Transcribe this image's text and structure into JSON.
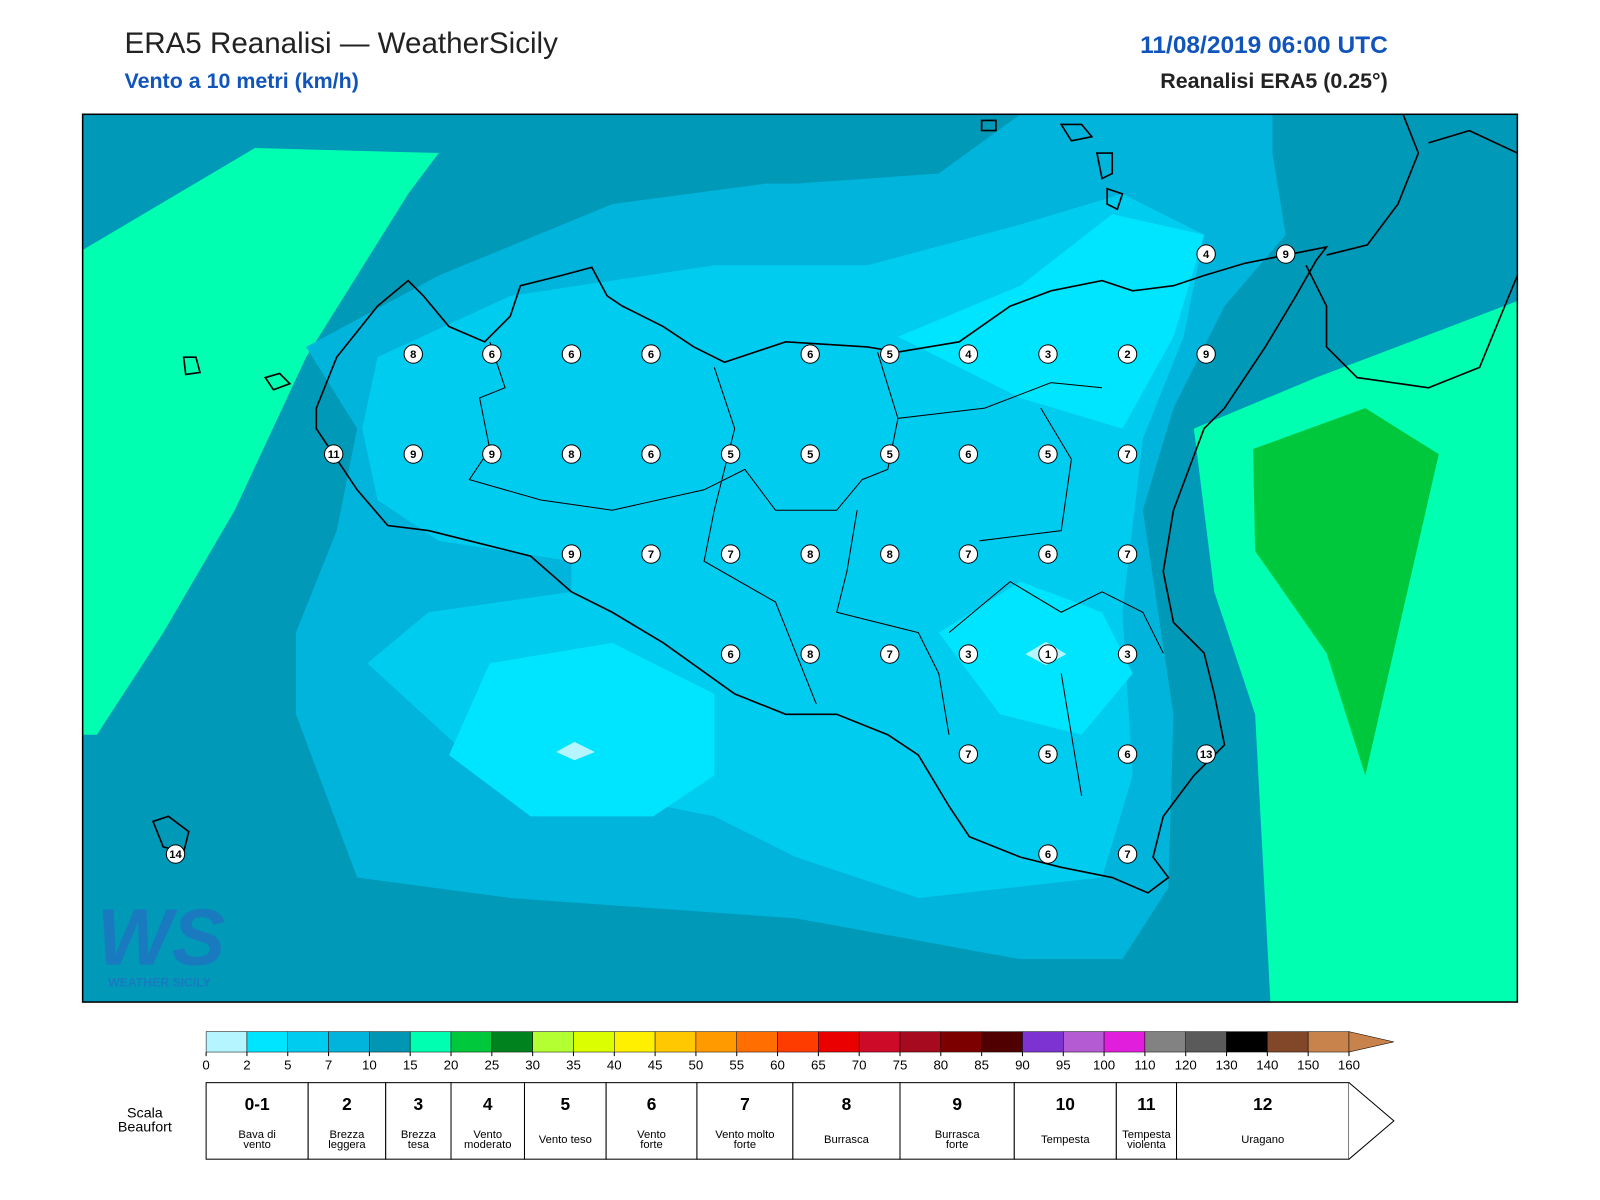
{
  "header": {
    "title": "ERA5 Reanalisi — WeatherSicily",
    "subtitle": "Vento a 10 metri (km/h)",
    "datetime": "11/08/2019 06:00 UTC",
    "source": "Reanalisi ERA5 (0.25°)"
  },
  "stations": [
    4,
    9,
    8,
    6,
    6,
    6,
    6,
    5,
    4,
    3,
    2,
    9,
    11,
    9,
    9,
    8,
    6,
    5,
    5,
    5,
    6,
    5,
    7,
    9,
    7,
    7,
    8,
    8,
    7,
    6,
    7,
    6,
    8,
    7,
    3,
    1,
    3,
    7,
    5,
    6,
    13,
    6,
    7,
    14
  ],
  "colorbar": {
    "ticks": [
      0,
      2,
      5,
      7,
      10,
      15,
      20,
      25,
      30,
      35,
      40,
      45,
      50,
      55,
      60,
      65,
      70,
      75,
      80,
      85,
      90,
      95,
      100,
      110,
      120,
      130,
      140,
      150,
      160
    ],
    "colors": [
      "#b4f5ff",
      "#00e5ff",
      "#00ccf0",
      "#00b4dc",
      "#0096b4",
      "#00ffb0",
      "#00c83c",
      "#00821e",
      "#b4ff32",
      "#dcff00",
      "#fff000",
      "#ffc800",
      "#ff9b00",
      "#ff6e00",
      "#ff3c00",
      "#eb0000",
      "#cd0a28",
      "#a50a1e",
      "#7d0000",
      "#500000",
      "#7d32d2",
      "#b45ad2",
      "#e11edc",
      "#828282",
      "#5a5a5a",
      "#000000",
      "#824628",
      "#c8824b"
    ]
  },
  "beaufort_label": [
    "Scala",
    "Beaufort"
  ],
  "beaufort": [
    {
      "force": "0-1",
      "description": [
        "Bava di",
        "vento"
      ]
    },
    {
      "force": "2",
      "description": [
        "Brezza",
        "leggera"
      ]
    },
    {
      "force": "3",
      "description": [
        "Brezza",
        "tesa"
      ]
    },
    {
      "force": "4",
      "description": [
        "Vento",
        "moderato"
      ]
    },
    {
      "force": "5",
      "description": [
        "Vento teso"
      ]
    },
    {
      "force": "6",
      "description": [
        "Vento",
        "forte"
      ]
    },
    {
      "force": "7",
      "description": [
        "Vento molto",
        "forte"
      ]
    },
    {
      "force": "8",
      "description": [
        "Burrasca"
      ]
    },
    {
      "force": "9",
      "description": [
        "Burrasca",
        "forte"
      ]
    },
    {
      "force": "10",
      "description": [
        "Tempesta"
      ]
    },
    {
      "force": "11",
      "description": [
        "Tempesta",
        "violenta"
      ]
    },
    {
      "force": "12",
      "description": [
        "Uragano"
      ]
    }
  ],
  "logo": {
    "letters": "WS",
    "name": "WEATHER SICILY"
  }
}
